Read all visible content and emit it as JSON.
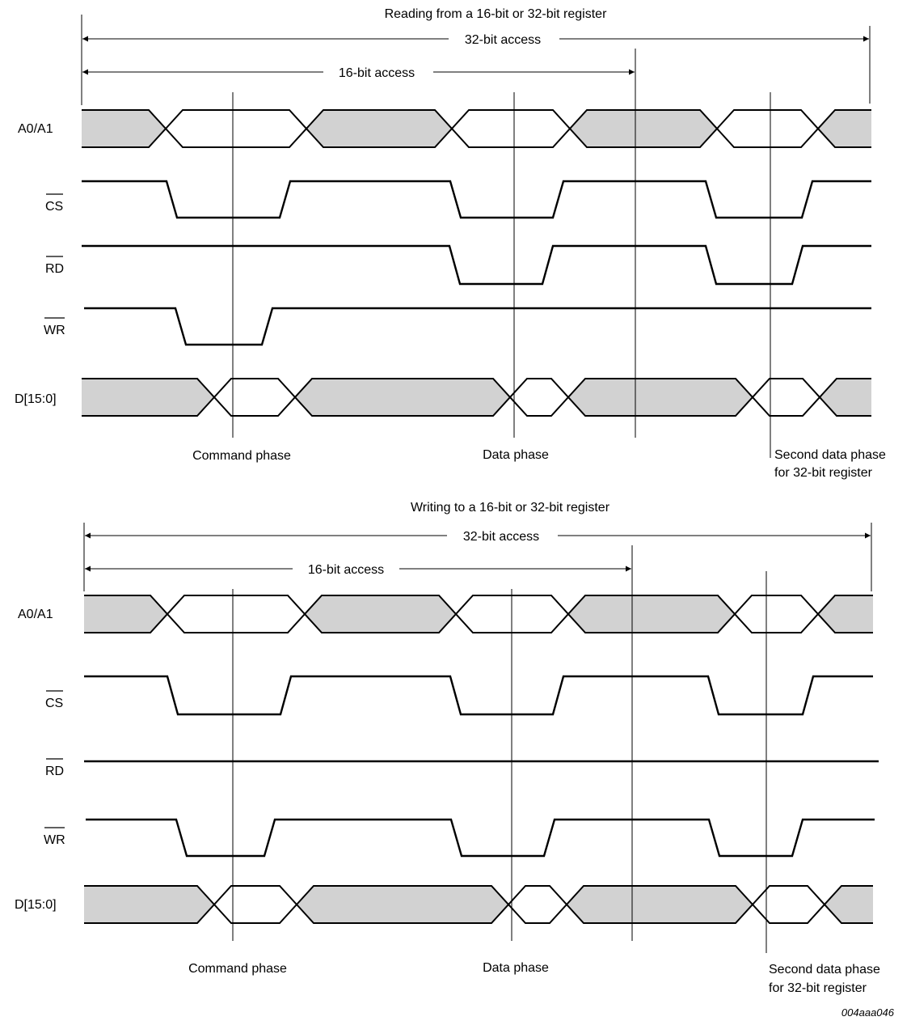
{
  "read_section": {
    "title": "Reading from a 16-bit or 32-bit register",
    "access_32": "32-bit access",
    "access_16": "16-bit access",
    "signals": [
      "A0/A1",
      "CS",
      "RD",
      "WR",
      "D[15:0]"
    ],
    "phases": {
      "command": "Command phase",
      "data": "Data phase",
      "second_line1": "Second data phase",
      "second_line2": "for 32-bit register"
    }
  },
  "write_section": {
    "title": "Writing to a 16-bit or 32-bit register",
    "access_32": "32-bit access",
    "access_16": "16-bit access",
    "signals": [
      "A0/A1",
      "CS",
      "RD",
      "WR",
      "D[15:0]"
    ],
    "phases": {
      "command": "Command phase",
      "data": "Data phase",
      "second_line1": "Second data phase",
      "second_line2": "for 32-bit register"
    }
  },
  "figure_id": "004aaa046",
  "colors": {
    "bus_fill": "#d2d2d2",
    "line": "#000000"
  }
}
